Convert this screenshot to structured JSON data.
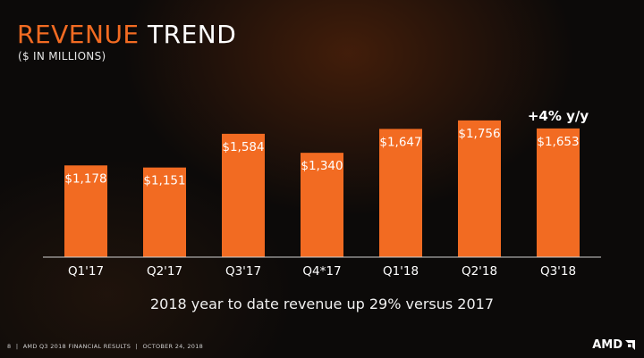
{
  "header": {
    "title_accent": "REVENUE",
    "title_main": "TREND",
    "subtitle": "($ IN MILLIONS)"
  },
  "chart_data": {
    "type": "bar",
    "title": "REVENUE TREND",
    "subtitle": "($ IN MILLIONS)",
    "categories": [
      "Q1'17",
      "Q2'17",
      "Q3'17",
      "Q4*17",
      "Q1'18",
      "Q2'18",
      "Q3'18"
    ],
    "values": [
      1178,
      1151,
      1584,
      1340,
      1647,
      1756,
      1653
    ],
    "data_labels": [
      "$1,178",
      "$1,151",
      "$1,584",
      "$1,340",
      "$1,647",
      "$1,756",
      "$1,653"
    ],
    "annotations": [
      {
        "category": "Q3'18",
        "text": "+4% y/y"
      }
    ],
    "bar_color": "#f26b22",
    "grid": false,
    "legend": "none"
  },
  "footnote": "2018 year to date revenue up 29% versus 2017",
  "footer": {
    "page": "8",
    "separator": "|",
    "deck": "AMD Q3 2018 FINANCIAL RESULTS",
    "date": "OCTOBER 24, 2018",
    "logo": "AMD"
  }
}
